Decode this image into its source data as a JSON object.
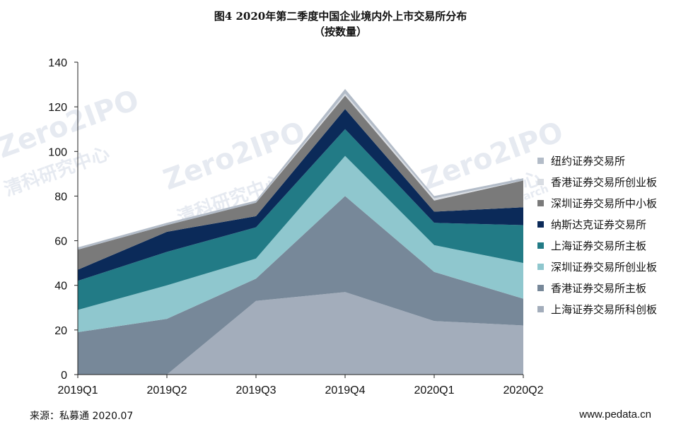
{
  "title": "图4  2020年第二季度中国企业境内外上市交易所分布",
  "subtitle": "（按数量）",
  "source": "来源：私募通 2020.07",
  "site": "www.pedata.cn",
  "watermark": {
    "brand": "Zero2IPO",
    "cn": "清科研究中心",
    "en": "Zero2IPO Research"
  },
  "chart_data": {
    "type": "area",
    "stacked": true,
    "categories": [
      "2019Q1",
      "2019Q2",
      "2019Q3",
      "2019Q4",
      "2020Q1",
      "2020Q2"
    ],
    "ylim": [
      0,
      140
    ],
    "yticks": [
      0,
      20,
      40,
      60,
      80,
      100,
      120,
      140
    ],
    "grid": false,
    "legend_position": "right",
    "series": [
      {
        "name": "上海证券交易所科创板",
        "color": "#a3adbb",
        "values": [
          0,
          0,
          33,
          37,
          24,
          22
        ]
      },
      {
        "name": "香港证券交易所主板",
        "color": "#778899",
        "values": [
          19,
          25,
          10,
          43,
          22,
          12
        ]
      },
      {
        "name": "深圳证券交易所创业板",
        "color": "#8fc7ce",
        "values": [
          10,
          15,
          9,
          18,
          12,
          16
        ]
      },
      {
        "name": "上海证券交易所主板",
        "color": "#227b86",
        "values": [
          13,
          15,
          14,
          12,
          10,
          17
        ]
      },
      {
        "name": "纳斯达克证券交易所",
        "color": "#0b2a59",
        "values": [
          5,
          9,
          5,
          9,
          5,
          8
        ]
      },
      {
        "name": "深圳证券交易所中小板",
        "color": "#7a7a7a",
        "values": [
          9,
          3,
          6,
          6,
          5,
          12
        ]
      },
      {
        "name": "香港证券交易所创业板",
        "color": "#d9dde3",
        "values": [
          0,
          0,
          0,
          1,
          1,
          0
        ]
      },
      {
        "name": "纽约证券交易所",
        "color": "#b3bcc8",
        "values": [
          1,
          1,
          1,
          2,
          1,
          1
        ]
      }
    ]
  }
}
